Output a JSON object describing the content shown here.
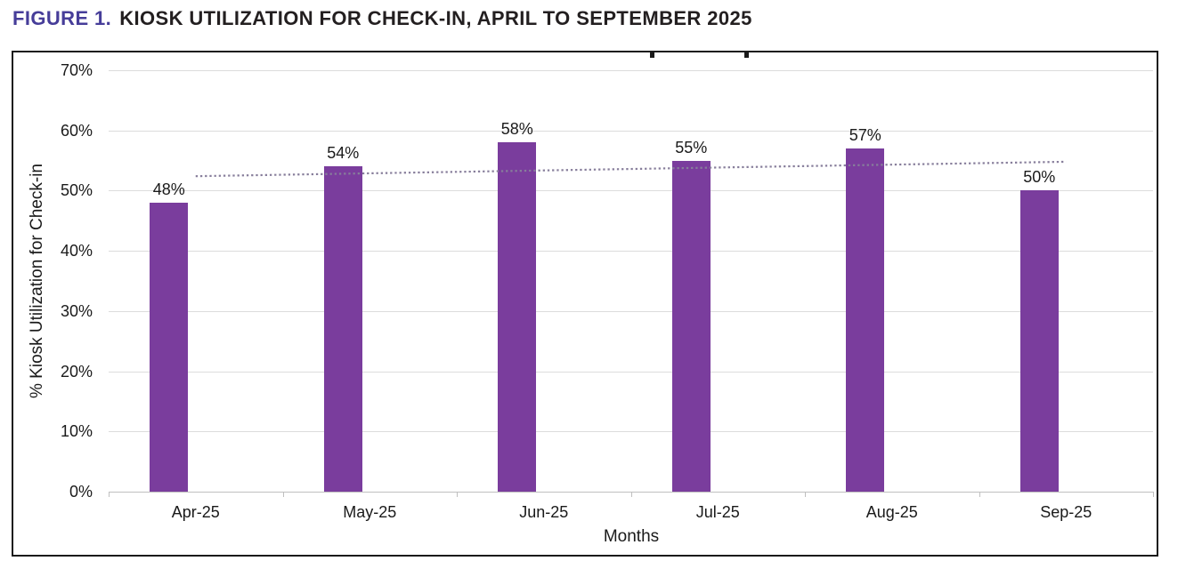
{
  "figure_title": {
    "prefix": "FIGURE 1.",
    "title": "KIOSK UTILIZATION FOR CHECK-IN, APRIL TO SEPTEMBER 2025",
    "prefix_color": "#463D99",
    "title_color": "#231F20"
  },
  "chart_data": {
    "type": "bar",
    "categories": [
      "Apr-25",
      "May-25",
      "Jun-25",
      "Jul-25",
      "Aug-25",
      "Sep-25"
    ],
    "values": [
      48,
      54,
      58,
      55,
      57,
      50
    ],
    "bar_labels": [
      "48%",
      "54%",
      "58%",
      "55%",
      "57%",
      "50%"
    ],
    "xlabel": "Months",
    "ylabel": "% Kiosk Utilization for Check-in",
    "ylim": [
      0,
      70
    ],
    "y_tick_values": [
      0,
      10,
      20,
      30,
      40,
      50,
      60,
      70
    ],
    "y_tick_labels": [
      "0%",
      "10%",
      "20%",
      "30%",
      "40%",
      "50%",
      "60%",
      "70%"
    ],
    "grid": "horizontal",
    "legend": "none",
    "bar_color": "#7A3D9D",
    "trendline": {
      "type": "linear",
      "style": "dotted",
      "color": "#877E9B",
      "start_value": 52.4,
      "end_value": 54.8
    }
  }
}
